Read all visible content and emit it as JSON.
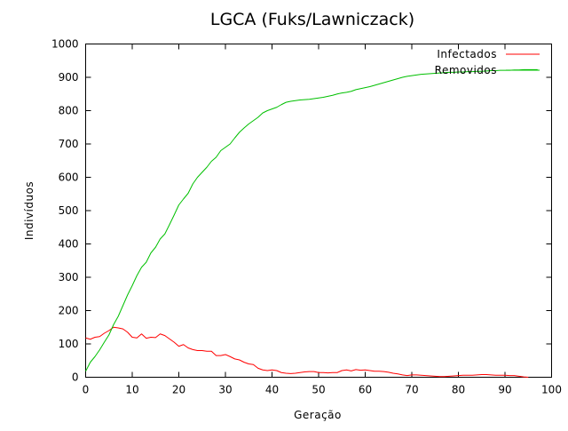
{
  "chart_data": {
    "type": "line",
    "title": "LGCA (Fuks/Lawniczack)",
    "xlabel": "Geração",
    "ylabel": "Indivíduos",
    "xlim": [
      0,
      100
    ],
    "ylim": [
      0,
      1000
    ],
    "x_ticks": [
      0,
      10,
      20,
      30,
      40,
      50,
      60,
      70,
      80,
      90,
      100
    ],
    "y_ticks": [
      0,
      100,
      200,
      300,
      400,
      500,
      600,
      700,
      800,
      900,
      1000
    ],
    "grid": false,
    "legend_position": "top-right",
    "series": [
      {
        "name": "Infectados",
        "color": "#ff0000",
        "points": [
          [
            0,
            118
          ],
          [
            1,
            114
          ],
          [
            2,
            120
          ],
          [
            3,
            122
          ],
          [
            4,
            132
          ],
          [
            5,
            140
          ],
          [
            6,
            150
          ],
          [
            7,
            148
          ],
          [
            8,
            145
          ],
          [
            9,
            135
          ],
          [
            10,
            120
          ],
          [
            11,
            118
          ],
          [
            12,
            130
          ],
          [
            13,
            117
          ],
          [
            14,
            120
          ],
          [
            15,
            119
          ],
          [
            16,
            130
          ],
          [
            17,
            125
          ],
          [
            18,
            115
          ],
          [
            19,
            105
          ],
          [
            20,
            93
          ],
          [
            21,
            98
          ],
          [
            22,
            88
          ],
          [
            23,
            83
          ],
          [
            24,
            80
          ],
          [
            25,
            80
          ],
          [
            26,
            78
          ],
          [
            27,
            78
          ],
          [
            28,
            65
          ],
          [
            29,
            65
          ],
          [
            30,
            68
          ],
          [
            31,
            62
          ],
          [
            32,
            55
          ],
          [
            33,
            52
          ],
          [
            34,
            45
          ],
          [
            35,
            40
          ],
          [
            36,
            38
          ],
          [
            37,
            27
          ],
          [
            38,
            22
          ],
          [
            39,
            20
          ],
          [
            40,
            22
          ],
          [
            41,
            20
          ],
          [
            42,
            14
          ],
          [
            43,
            12
          ],
          [
            44,
            11
          ],
          [
            45,
            12
          ],
          [
            46,
            14
          ],
          [
            47,
            16
          ],
          [
            48,
            17
          ],
          [
            49,
            17
          ],
          [
            50,
            14
          ],
          [
            51,
            14
          ],
          [
            52,
            13
          ],
          [
            53,
            14
          ],
          [
            54,
            14
          ],
          [
            55,
            20
          ],
          [
            56,
            22
          ],
          [
            57,
            19
          ],
          [
            58,
            23
          ],
          [
            59,
            21
          ],
          [
            60,
            22
          ],
          [
            61,
            20
          ],
          [
            62,
            18
          ],
          [
            63,
            18
          ],
          [
            64,
            17
          ],
          [
            65,
            15
          ],
          [
            66,
            12
          ],
          [
            67,
            10
          ],
          [
            68,
            7
          ],
          [
            69,
            5
          ],
          [
            70,
            7
          ],
          [
            71,
            7
          ],
          [
            72,
            6
          ],
          [
            73,
            5
          ],
          [
            74,
            4
          ],
          [
            75,
            3
          ],
          [
            76,
            2
          ],
          [
            77,
            2
          ],
          [
            78,
            3
          ],
          [
            79,
            4
          ],
          [
            80,
            5
          ],
          [
            81,
            6
          ],
          [
            82,
            6
          ],
          [
            83,
            6
          ],
          [
            84,
            7
          ],
          [
            85,
            8
          ],
          [
            86,
            8
          ],
          [
            87,
            7
          ],
          [
            88,
            6
          ],
          [
            89,
            6
          ],
          [
            90,
            6
          ],
          [
            91,
            5
          ],
          [
            92,
            5
          ],
          [
            93,
            3
          ],
          [
            94,
            1
          ],
          [
            95,
            0
          ]
        ]
      },
      {
        "name": "Removidos",
        "color": "#00c000",
        "points": [
          [
            0,
            18
          ],
          [
            1,
            45
          ],
          [
            2,
            62
          ],
          [
            3,
            82
          ],
          [
            4,
            105
          ],
          [
            5,
            127
          ],
          [
            6,
            158
          ],
          [
            7,
            183
          ],
          [
            8,
            215
          ],
          [
            9,
            247
          ],
          [
            10,
            275
          ],
          [
            11,
            305
          ],
          [
            12,
            330
          ],
          [
            13,
            345
          ],
          [
            14,
            373
          ],
          [
            15,
            390
          ],
          [
            16,
            415
          ],
          [
            17,
            430
          ],
          [
            18,
            458
          ],
          [
            19,
            487
          ],
          [
            20,
            517
          ],
          [
            21,
            535
          ],
          [
            22,
            552
          ],
          [
            23,
            580
          ],
          [
            24,
            600
          ],
          [
            25,
            615
          ],
          [
            26,
            630
          ],
          [
            27,
            648
          ],
          [
            28,
            660
          ],
          [
            29,
            680
          ],
          [
            30,
            690
          ],
          [
            31,
            700
          ],
          [
            32,
            718
          ],
          [
            33,
            735
          ],
          [
            34,
            748
          ],
          [
            35,
            760
          ],
          [
            36,
            770
          ],
          [
            37,
            780
          ],
          [
            38,
            793
          ],
          [
            39,
            800
          ],
          [
            40,
            805
          ],
          [
            41,
            810
          ],
          [
            42,
            818
          ],
          [
            43,
            825
          ],
          [
            44,
            828
          ],
          [
            45,
            830
          ],
          [
            46,
            832
          ],
          [
            47,
            833
          ],
          [
            48,
            834
          ],
          [
            49,
            836
          ],
          [
            50,
            838
          ],
          [
            51,
            840
          ],
          [
            52,
            843
          ],
          [
            53,
            846
          ],
          [
            54,
            850
          ],
          [
            55,
            853
          ],
          [
            56,
            855
          ],
          [
            57,
            858
          ],
          [
            58,
            863
          ],
          [
            59,
            866
          ],
          [
            60,
            869
          ],
          [
            61,
            872
          ],
          [
            62,
            876
          ],
          [
            63,
            880
          ],
          [
            64,
            884
          ],
          [
            65,
            888
          ],
          [
            66,
            892
          ],
          [
            67,
            896
          ],
          [
            68,
            900
          ],
          [
            69,
            903
          ],
          [
            70,
            905
          ],
          [
            71,
            907
          ],
          [
            72,
            909
          ],
          [
            73,
            910
          ],
          [
            74,
            911
          ],
          [
            75,
            912
          ],
          [
            76,
            913
          ],
          [
            77,
            914
          ],
          [
            78,
            915
          ],
          [
            79,
            915
          ],
          [
            80,
            916
          ],
          [
            81,
            916
          ],
          [
            82,
            917
          ],
          [
            83,
            917
          ],
          [
            84,
            918
          ],
          [
            85,
            918
          ],
          [
            86,
            919
          ],
          [
            87,
            920
          ],
          [
            88,
            920
          ],
          [
            89,
            921
          ],
          [
            90,
            921
          ],
          [
            91,
            921
          ],
          [
            92,
            922
          ],
          [
            93,
            922
          ],
          [
            94,
            923
          ],
          [
            95,
            923
          ],
          [
            96,
            923
          ],
          [
            97,
            923
          ]
        ]
      }
    ]
  }
}
